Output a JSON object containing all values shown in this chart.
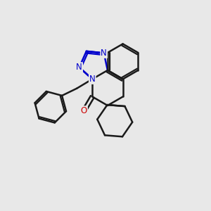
{
  "bg_color": "#e8e8e8",
  "bond_color": "#1a1a1a",
  "n_color": "#0000cc",
  "o_color": "#cc0000",
  "bond_width": 1.8,
  "figsize": [
    3.0,
    3.0
  ],
  "dpi": 100,
  "xlim": [
    0,
    10
  ],
  "ylim": [
    0,
    10
  ]
}
